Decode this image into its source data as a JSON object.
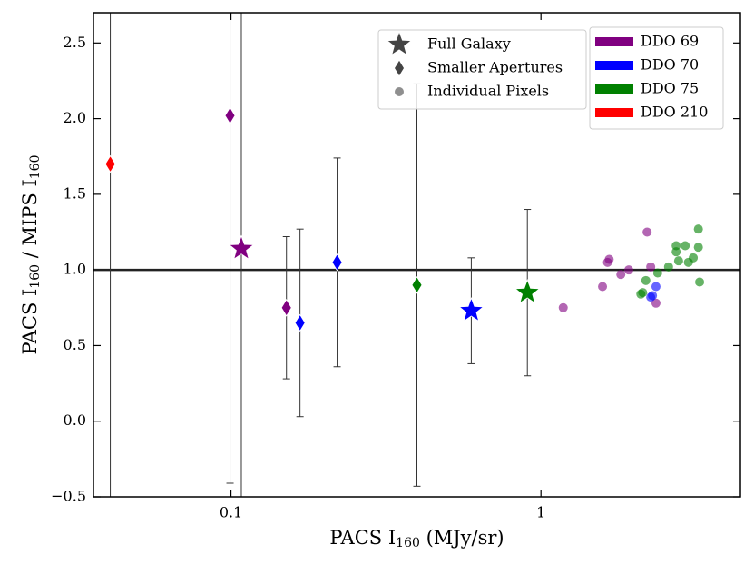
{
  "chart_data": {
    "type": "scatter",
    "xlabel": [
      "PACS I",
      "160",
      " (MJy/sr)"
    ],
    "ylabel": [
      "PACS I",
      "160",
      " / MIPS I",
      "160"
    ],
    "xlog": true,
    "xlim": [
      0.036,
      4.4
    ],
    "ylim": [
      -0.5,
      2.7
    ],
    "xticks": [
      0.1,
      1
    ],
    "yticks": [
      {
        "value": -0.5,
        "label": "−0.5"
      },
      {
        "value": 0,
        "label": "0.0"
      },
      0.5,
      {
        "value": 1,
        "label": "1.0"
      },
      1.5,
      {
        "value": 2,
        "label": "2.0"
      },
      2.5
    ],
    "hline": 1,
    "galaxies": [
      {
        "name": "DDO 69",
        "color": "#800080"
      },
      {
        "name": "DDO 70",
        "color": "#0000ff"
      },
      {
        "name": "DDO 75",
        "color": "#008000"
      },
      {
        "name": "DDO 210",
        "color": "#ff0000"
      }
    ],
    "series": [
      {
        "name": "Full Galaxy",
        "marker": "star",
        "opacity": 1,
        "x": [
          0.108,
          0.596,
          0.904
        ],
        "values": [
          1.14,
          0.73,
          0.85
        ],
        "errors": [
          2.0,
          0.35,
          0.55
        ],
        "colors": [
          "#800080",
          "#0000ff",
          "#008000"
        ]
      },
      {
        "name": "Smaller Apertures",
        "marker": "diamond",
        "opacity": 1,
        "x": [
          0.0408,
          0.0993,
          0.151,
          0.167,
          0.22,
          0.398
        ],
        "values": [
          1.7,
          2.02,
          0.75,
          0.65,
          1.05,
          0.9
        ],
        "errors": [
          2.5,
          2.43,
          0.47,
          0.62,
          0.69,
          1.33
        ],
        "colors": [
          "#ff0000",
          "#800080",
          "#800080",
          "#0000ff",
          "#0000ff",
          "#008000"
        ]
      },
      {
        "name": "Individual Pixels",
        "marker": "circle",
        "opacity": 0.6,
        "x": [
          1.18,
          1.58,
          1.64,
          1.66,
          1.81,
          1.92,
          2.2,
          2.26,
          2.35,
          2.26,
          2.35,
          2.29,
          2.13,
          2.18,
          2.38,
          2.58,
          2.73,
          2.78,
          2.92,
          2.99,
          3.1,
          3.22,
          3.22,
          3.25,
          2.73,
          2.1
        ],
        "values": [
          0.75,
          0.89,
          1.05,
          1.07,
          0.97,
          1.0,
          1.25,
          1.02,
          0.78,
          0.82,
          0.89,
          0.83,
          0.85,
          0.93,
          0.98,
          1.02,
          1.16,
          1.06,
          1.16,
          1.05,
          1.08,
          1.27,
          1.15,
          0.92,
          1.12,
          0.84
        ],
        "colors": [
          "#800080",
          "#800080",
          "#800080",
          "#800080",
          "#800080",
          "#800080",
          "#800080",
          "#800080",
          "#800080",
          "#0000ff",
          "#0000ff",
          "#0000ff",
          "#008000",
          "#008000",
          "#008000",
          "#008000",
          "#008000",
          "#008000",
          "#008000",
          "#008000",
          "#008000",
          "#008000",
          "#008000",
          "#008000",
          "#008000",
          "#008000"
        ]
      }
    ]
  }
}
